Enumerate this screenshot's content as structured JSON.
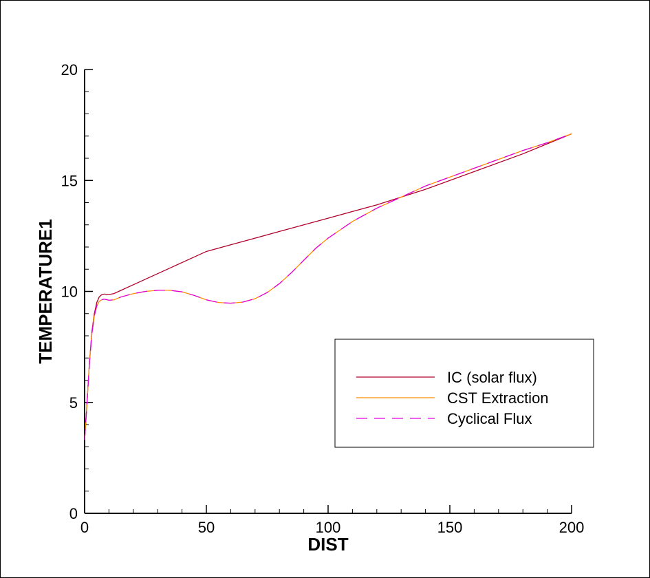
{
  "chart_data": {
    "type": "line",
    "xlabel": "DIST",
    "ylabel": "TEMPERATURE1",
    "xlim": [
      0,
      200
    ],
    "ylim": [
      0,
      20
    ],
    "x_ticks": [
      0,
      50,
      100,
      150,
      200
    ],
    "y_ticks": [
      0,
      5,
      10,
      15,
      20
    ],
    "x_tick_labels": [
      "0",
      "50",
      "100",
      "150",
      "200"
    ],
    "y_tick_labels": [
      "0",
      "5",
      "10",
      "15",
      "20"
    ],
    "grid": false,
    "legend_position": "lower-right",
    "series": [
      {
        "name": "IC (solar flux)",
        "color": "#b0002a",
        "dash": "solid",
        "x": [
          0,
          1,
          2,
          3,
          4,
          5,
          6,
          7,
          8,
          9,
          10,
          12,
          15,
          20,
          30,
          40,
          50,
          60,
          80,
          100,
          120,
          140,
          160,
          180,
          200
        ],
        "y": [
          3.3,
          5.0,
          6.8,
          8.2,
          9.0,
          9.5,
          9.75,
          9.85,
          9.88,
          9.87,
          9.86,
          9.9,
          10.05,
          10.3,
          10.8,
          11.3,
          11.8,
          12.1,
          12.7,
          13.3,
          13.9,
          14.6,
          15.4,
          16.2,
          17.1
        ]
      },
      {
        "name": "CST Extraction",
        "color": "#ff8c00",
        "dash": "solid",
        "x": [
          0,
          1,
          2,
          3,
          4,
          5,
          6,
          7,
          8,
          9,
          10,
          12,
          15,
          20,
          25,
          30,
          35,
          40,
          45,
          50,
          55,
          60,
          65,
          70,
          75,
          80,
          85,
          90,
          95,
          100,
          110,
          120,
          130,
          140,
          150,
          160,
          170,
          180,
          190,
          200
        ],
        "y": [
          3.3,
          5.0,
          6.8,
          8.1,
          8.9,
          9.35,
          9.55,
          9.62,
          9.65,
          9.63,
          9.6,
          9.62,
          9.75,
          9.9,
          10.0,
          10.05,
          10.05,
          9.98,
          9.82,
          9.62,
          9.5,
          9.47,
          9.52,
          9.67,
          9.95,
          10.35,
          10.85,
          11.4,
          11.95,
          12.4,
          13.15,
          13.75,
          14.25,
          14.75,
          15.15,
          15.55,
          15.95,
          16.35,
          16.7,
          17.1
        ]
      },
      {
        "name": "Cyclical Flux",
        "color": "#e000e0",
        "dash": "dashed",
        "x": [
          0,
          1,
          2,
          3,
          4,
          5,
          6,
          7,
          8,
          9,
          10,
          12,
          15,
          20,
          25,
          30,
          35,
          40,
          45,
          50,
          55,
          60,
          65,
          70,
          75,
          80,
          85,
          90,
          95,
          100,
          110,
          120,
          130,
          140,
          150,
          160,
          170,
          180,
          190,
          200
        ],
        "y": [
          3.3,
          5.0,
          6.8,
          8.1,
          8.9,
          9.35,
          9.55,
          9.62,
          9.65,
          9.63,
          9.6,
          9.62,
          9.75,
          9.9,
          10.0,
          10.05,
          10.05,
          9.98,
          9.82,
          9.62,
          9.5,
          9.47,
          9.52,
          9.67,
          9.95,
          10.35,
          10.85,
          11.4,
          11.95,
          12.4,
          13.15,
          13.75,
          14.25,
          14.75,
          15.15,
          15.55,
          15.95,
          16.35,
          16.7,
          17.1
        ]
      }
    ]
  }
}
